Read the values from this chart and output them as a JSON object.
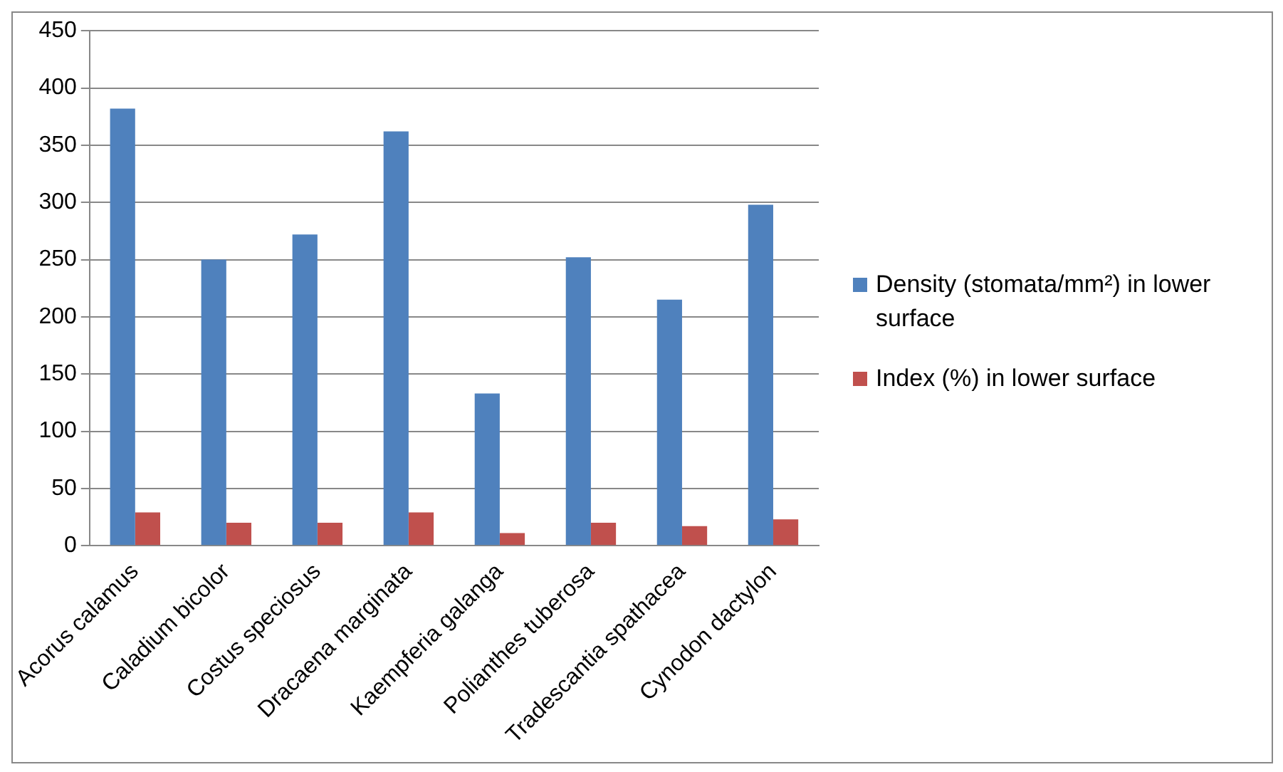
{
  "chart_data": {
    "type": "bar",
    "categories": [
      "Acorus calamus",
      "Caladium bicolor",
      "Costus speciosus",
      "Dracaena marginata",
      "Kaempferia galanga",
      "Polianthes tuberosa",
      "Tradescantia spathacea",
      "Cynodon dactylon"
    ],
    "series": [
      {
        "name": "Density (stomata/mm²)  in lower surface",
        "color": "#4f81bd",
        "values": [
          382,
          250,
          272,
          362,
          133,
          252,
          215,
          298
        ]
      },
      {
        "name": "Index (%) in lower surface",
        "color": "#c0504d",
        "values": [
          29,
          20,
          20,
          29,
          11,
          20,
          17,
          23
        ]
      }
    ],
    "ylim": [
      0,
      450
    ],
    "yticks": [
      0,
      50,
      100,
      150,
      200,
      250,
      300,
      350,
      400,
      450
    ],
    "grid": "y",
    "legend": "right"
  }
}
